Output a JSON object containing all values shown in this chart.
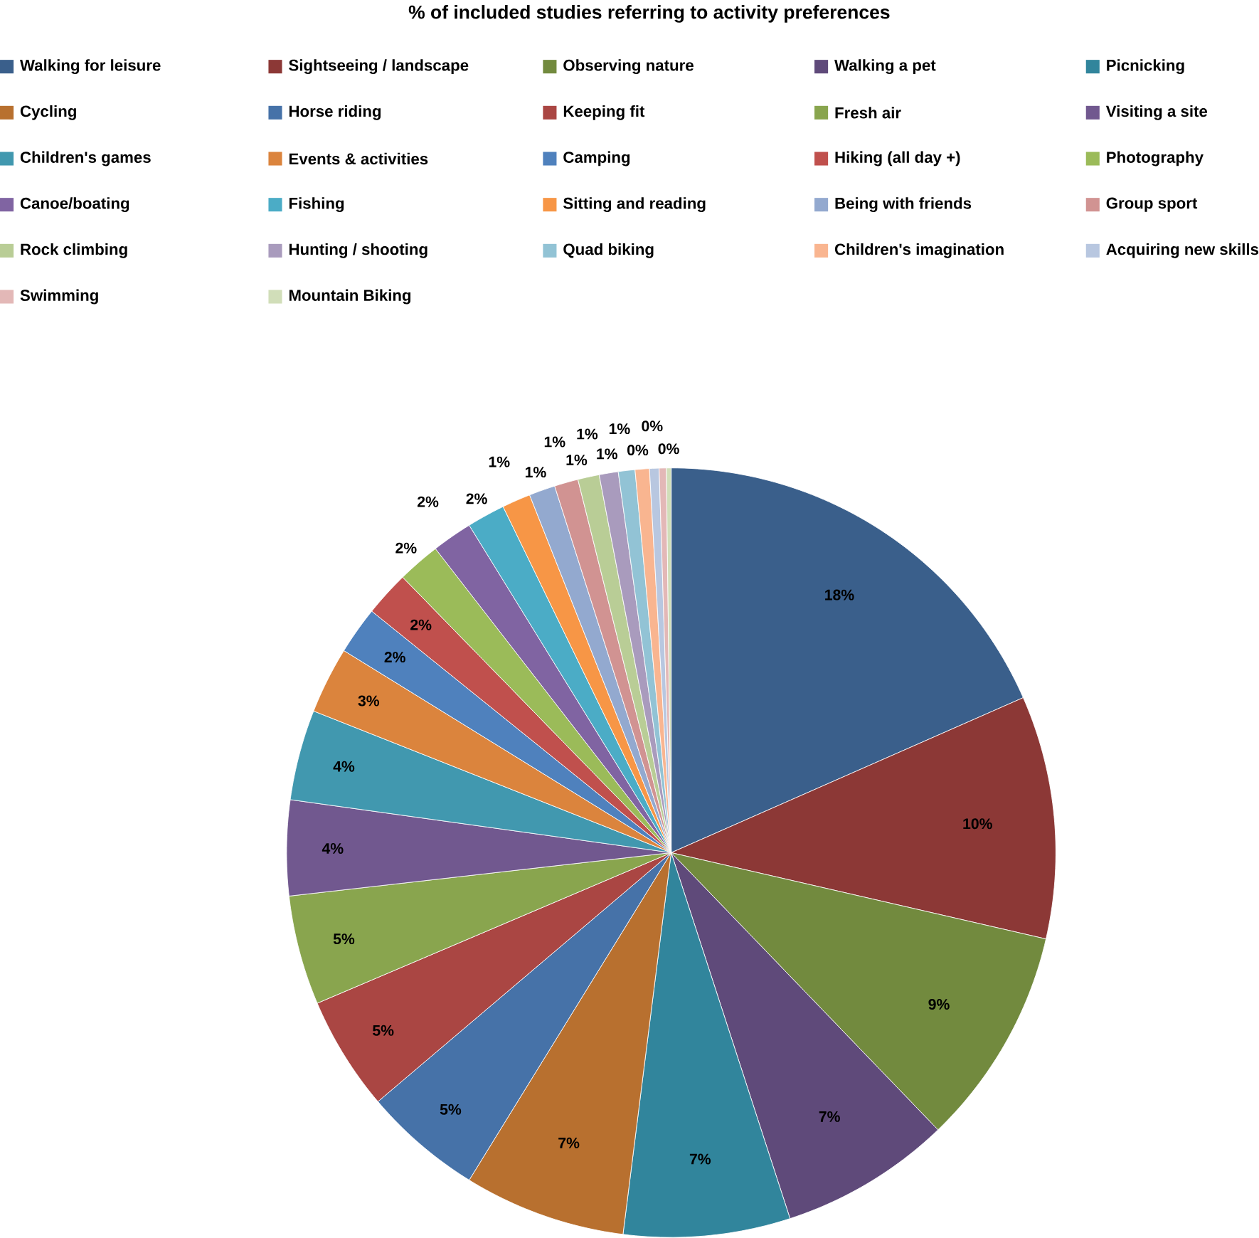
{
  "chart_data": {
    "type": "pie",
    "title": "% of included studies referring to activity preferences",
    "categories": [
      "Walking for leisure",
      "Sightseeing / landscape",
      "Observing nature",
      "Walking a pet",
      "Picnicking",
      "Cycling",
      "Horse riding",
      "Keeping fit",
      "Fresh air",
      "Visiting a site",
      "Children's games",
      "Events & activities",
      "Camping",
      "Hiking (all day +)",
      "Photography",
      "Canoe/boating",
      "Fishing",
      "Sitting and reading",
      "Being with friends",
      "Group sport",
      "Rock climbing",
      "Hunting / shooting",
      "Quad biking",
      "Children's imagination",
      "Acquiring new skills",
      "Swimming",
      "Mountain Biking"
    ],
    "values": [
      18.4,
      10.2,
      9.2,
      7.2,
      7.0,
      6.8,
      5.0,
      4.8,
      4.6,
      4.0,
      3.8,
      2.8,
      2.0,
      1.9,
      1.8,
      1.7,
      1.6,
      1.2,
      1.1,
      1.0,
      0.9,
      0.8,
      0.7,
      0.6,
      0.4,
      0.3,
      0.2
    ],
    "value_labels": [
      "18%",
      "10%",
      "9%",
      "7%",
      "7%",
      "7%",
      "5%",
      "5%",
      "5%",
      "4%",
      "4%",
      "3%",
      "2%",
      "2%",
      "2%",
      "2%",
      "2%",
      "1%",
      "1%",
      "1%",
      "1%",
      "1%",
      "1%",
      "1%",
      "0%",
      "0%",
      "0%"
    ],
    "colors": [
      "#3a5f8b",
      "#8c3836",
      "#728a3e",
      "#5f4a7a",
      "#31859c",
      "#b8702f",
      "#4672a8",
      "#aa4643",
      "#89a54e",
      "#71588f",
      "#4198af",
      "#db843d",
      "#4f81bd",
      "#c0504d",
      "#9bbb59",
      "#8064a2",
      "#4bacc6",
      "#f79646",
      "#93a9cf",
      "#d19392",
      "#b9cd96",
      "#a99bbd",
      "#92c3d5",
      "#f9b590",
      "#b8c7e0",
      "#e3b8b7",
      "#d1deb9"
    ],
    "legend": "top"
  }
}
